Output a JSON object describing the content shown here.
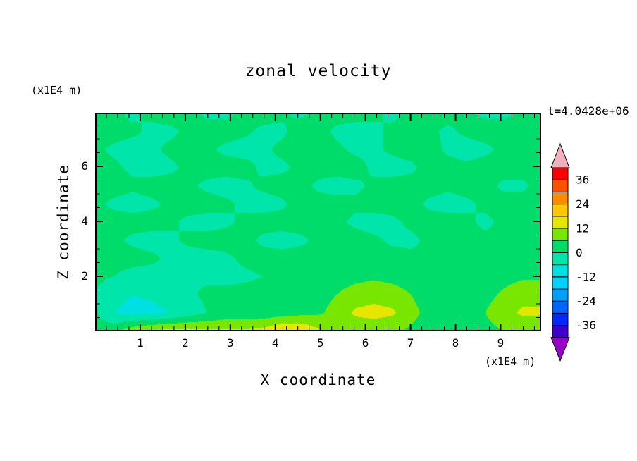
{
  "title": "zonal velocity",
  "time_label": "t=4.0428e+06",
  "x_axis": {
    "label": "X coordinate",
    "unit": "(x1E4 m)",
    "ticks": [
      1,
      2,
      3,
      4,
      5,
      6,
      7,
      8,
      9
    ],
    "range": [
      0,
      9.9
    ],
    "minor_step": 0.25
  },
  "y_axis": {
    "label": "Z coordinate",
    "unit": "(x1E4 m)",
    "ticks": [
      2,
      4,
      6
    ],
    "range": [
      0,
      7.95
    ],
    "minor_step": 0.5
  },
  "colorbar": {
    "labeled_levels": [
      36,
      24,
      12,
      0,
      -12,
      -24,
      -36
    ]
  },
  "colors": {
    "background": "#ffffff",
    "axis": "#000000",
    "text": "#000000"
  },
  "chart_data": {
    "type": "heatmap",
    "subtype": "filled_contour",
    "title": "zonal velocity",
    "xlabel": "X coordinate (x1E4 m)",
    "ylabel": "Z coordinate (x1E4 m)",
    "time_annotation": "t=4.0428e+06",
    "x_range": [
      0,
      9.9
    ],
    "z_range": [
      0,
      7.95
    ],
    "x_ticks": [
      1,
      2,
      3,
      4,
      5,
      6,
      7,
      8,
      9
    ],
    "y_ticks": [
      2,
      4,
      6
    ],
    "levels": [
      -42,
      -36,
      -30,
      -24,
      -18,
      -12,
      -6,
      0,
      6,
      12,
      18,
      24,
      30,
      36,
      42
    ],
    "band_colors": [
      "#3c00c8",
      "#0028ff",
      "#0064ff",
      "#00a0ff",
      "#00d2ff",
      "#00e0e0",
      "#00e6aa",
      "#00dc69",
      "#78e600",
      "#e6e600",
      "#ffc800",
      "#ff8c00",
      "#ff5000",
      "#ff0000"
    ],
    "under_color": "#9600c8",
    "over_color": "#f0b0c0",
    "grid": {
      "nx": 25,
      "nz": 13,
      "order": "rows bottom-to-top, evenly spaced over x_range and z_range",
      "values": [
        [
          2,
          4,
          10,
          13,
          14,
          14,
          13,
          13,
          13,
          14,
          18,
          18,
          13,
          10,
          8,
          8,
          7,
          5,
          3,
          2,
          3,
          4,
          6,
          7,
          6
        ],
        [
          1,
          -6,
          -8,
          -8,
          -6,
          -3,
          0,
          2,
          2,
          2,
          3,
          4,
          5,
          8,
          13,
          14,
          13,
          8,
          4,
          2,
          3,
          6,
          10,
          13,
          13
        ],
        [
          0,
          -4,
          -6,
          -5,
          -3,
          -1,
          1,
          2,
          2,
          2,
          2,
          3,
          4,
          6,
          9,
          10,
          9,
          6,
          3,
          2,
          2,
          4,
          7,
          10,
          10
        ],
        [
          1,
          0,
          -2,
          -2,
          -1,
          0,
          -1,
          -2,
          -1,
          0,
          1,
          2,
          2,
          3,
          4,
          5,
          4,
          3,
          2,
          1,
          2,
          3,
          4,
          5,
          5
        ],
        [
          2,
          2,
          2,
          1,
          -1,
          -2,
          -2,
          -1,
          1,
          2,
          2,
          2,
          1,
          2,
          2,
          2,
          2,
          1,
          1,
          2,
          2,
          2,
          2,
          2,
          2
        ],
        [
          2,
          1,
          -1,
          -2,
          -1,
          1,
          2,
          2,
          2,
          -1,
          -2,
          -1,
          1,
          2,
          2,
          1,
          -1,
          -1,
          1,
          2,
          2,
          1,
          2,
          2,
          2
        ],
        [
          2,
          2,
          2,
          2,
          1,
          -1,
          -2,
          -1,
          1,
          2,
          2,
          2,
          2,
          1,
          -1,
          -2,
          -1,
          1,
          2,
          2,
          1,
          -1,
          1,
          2,
          2
        ],
        [
          1,
          -1,
          -2,
          -1,
          1,
          2,
          2,
          1,
          -1,
          -2,
          -1,
          2,
          2,
          2,
          1,
          2,
          2,
          2,
          -1,
          -2,
          -1,
          1,
          2,
          2,
          2
        ],
        [
          2,
          2,
          1,
          2,
          2,
          1,
          -1,
          -2,
          -1,
          1,
          2,
          2,
          -1,
          -2,
          -1,
          1,
          2,
          2,
          2,
          1,
          2,
          2,
          -1,
          -1,
          2
        ],
        [
          2,
          1,
          -1,
          -2,
          -1,
          1,
          2,
          2,
          2,
          -1,
          -1,
          1,
          2,
          2,
          2,
          -1,
          -2,
          -1,
          2,
          2,
          1,
          2,
          2,
          2,
          2
        ],
        [
          1,
          -1,
          -2,
          -1,
          1,
          2,
          1,
          -1,
          -2,
          -1,
          1,
          2,
          2,
          1,
          -1,
          -1,
          1,
          2,
          2,
          -1,
          -2,
          -1,
          1,
          2,
          2
        ],
        [
          2,
          2,
          1,
          -1,
          -1,
          1,
          2,
          2,
          1,
          -1,
          -1,
          2,
          2,
          -1,
          -2,
          -1,
          1,
          2,
          1,
          -1,
          1,
          2,
          2,
          1,
          2
        ],
        [
          2,
          1,
          -1,
          1,
          2,
          2,
          -1,
          -1,
          1,
          2,
          1,
          -1,
          1,
          2,
          2,
          1,
          -1,
          1,
          2,
          2,
          1,
          -1,
          -1,
          1,
          2
        ]
      ]
    }
  }
}
